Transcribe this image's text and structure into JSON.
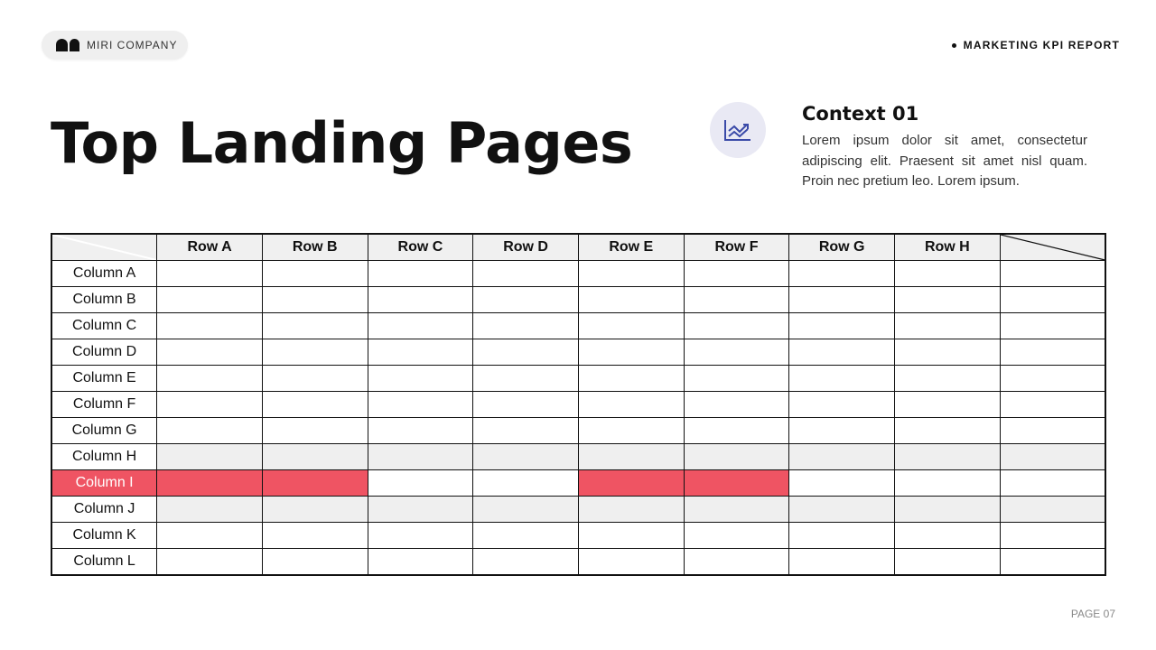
{
  "brand": {
    "name": "MIRI COMPANY"
  },
  "header": {
    "report_label": "MARKETING KPI REPORT"
  },
  "page_title": "Top Landing Pages",
  "context": {
    "icon": "chart-trend-icon",
    "title": "Context 01",
    "body": "Lorem ipsum dolor sit amet, consectetur adipiscing elit. Praesent sit amet nisl quam. Proin nec pretium leo. Lorem ipsum."
  },
  "table": {
    "headers": [
      "Row A",
      "Row B",
      "Row C",
      "Row D",
      "Row E",
      "Row F",
      "Row G",
      "Row H",
      ""
    ],
    "rows": [
      {
        "label": "Column A",
        "style": "plain",
        "highlight": []
      },
      {
        "label": "Column B",
        "style": "plain",
        "highlight": []
      },
      {
        "label": "Column C",
        "style": "plain",
        "highlight": []
      },
      {
        "label": "Column D",
        "style": "plain",
        "highlight": []
      },
      {
        "label": "Column E",
        "style": "plain",
        "highlight": []
      },
      {
        "label": "Column F",
        "style": "plain",
        "highlight": []
      },
      {
        "label": "Column G",
        "style": "plain",
        "highlight": []
      },
      {
        "label": "Column H",
        "style": "gray",
        "highlight": []
      },
      {
        "label": "Column I",
        "style": "plain",
        "label_highlight": true,
        "highlight": [
          0,
          1,
          4,
          5
        ]
      },
      {
        "label": "Column J",
        "style": "gray",
        "highlight": []
      },
      {
        "label": "Column K",
        "style": "plain",
        "highlight": []
      },
      {
        "label": "Column L",
        "style": "plain",
        "highlight": []
      }
    ],
    "highlight_color": "#ef5463",
    "gray_color": "#efefef"
  },
  "footer": {
    "page": "PAGE 07"
  }
}
